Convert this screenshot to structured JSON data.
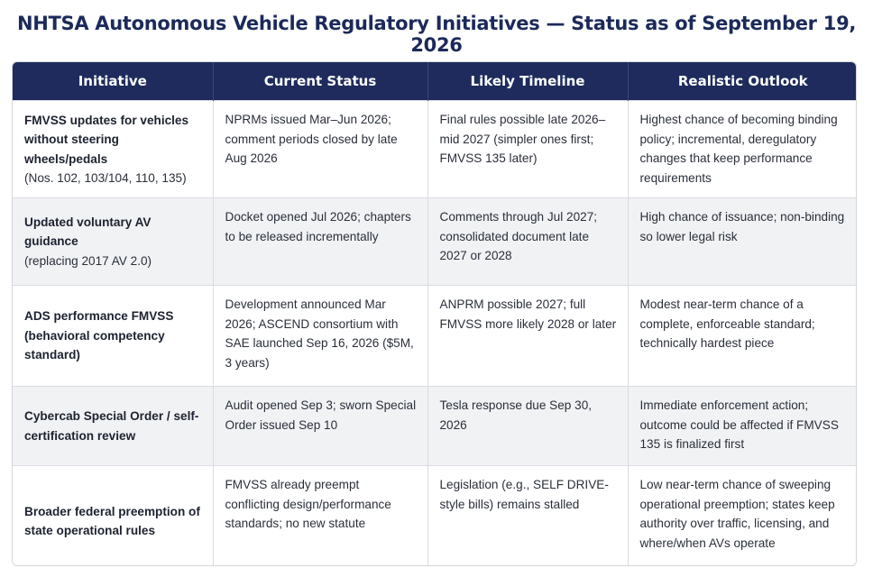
{
  "title": "NHTSA Autonomous Vehicle Regulatory Initiatives — Status as of September 19, 2026",
  "columns": [
    "Initiative",
    "Current Status",
    "Likely Timeline",
    "Realistic Outlook"
  ],
  "rows": [
    {
      "initiative_bold": "FMVSS updates for vehicles without steering wheels/pedals",
      "initiative_sub": "(Nos. 102, 103/104, 110, 135)",
      "status": "NPRMs issued Mar–Jun 2026; comment periods closed by late Aug 2026",
      "timeline": "Final rules possible late 2026–mid 2027 (simpler ones first; FMVSS 135 later)",
      "outlook": "Highest chance of becoming binding policy; incremental, deregulatory changes that keep performance requirements"
    },
    {
      "initiative_bold": "Updated voluntary AV guidance",
      "initiative_sub": "(replacing 2017 AV 2.0)",
      "status": "Docket opened Jul 2026; chapters to be released incrementally",
      "timeline": "Comments through Jul 2027; consolidated document late 2027 or 2028",
      "outlook": "High chance of issuance; non-binding so lower legal risk"
    },
    {
      "initiative_bold": "ADS performance FMVSS (behavioral competency standard)",
      "initiative_sub": "",
      "status": "Development announced Mar 2026; ASCEND consortium with SAE launched Sep 16, 2026 ($5M, 3 years)",
      "timeline": "ANPRM possible 2027; full FMVSS more likely 2028 or later",
      "outlook": "Modest near-term chance of a complete, enforceable standard; technically hardest piece"
    },
    {
      "initiative_bold": "Cybercab Special Order / self-certification review",
      "initiative_sub": "",
      "status": "Audit opened Sep 3; sworn Special Order issued Sep 10",
      "timeline": "Tesla response due Sep 30, 2026",
      "outlook": "Immediate enforcement action; outcome could be affected if FMVSS 135 is finalized first"
    },
    {
      "initiative_bold": "Broader federal preemption of state operational rules",
      "initiative_sub": "",
      "status": "FMVSS already preempt conflicting design/performance standards; no new statute",
      "timeline": "Legislation (e.g., SELF DRIVE-style bills) remains stalled",
      "outlook": "Low near-term chance of sweeping operational preemption; states keep authority over traffic, licensing, and where/when AVs operate"
    }
  ]
}
